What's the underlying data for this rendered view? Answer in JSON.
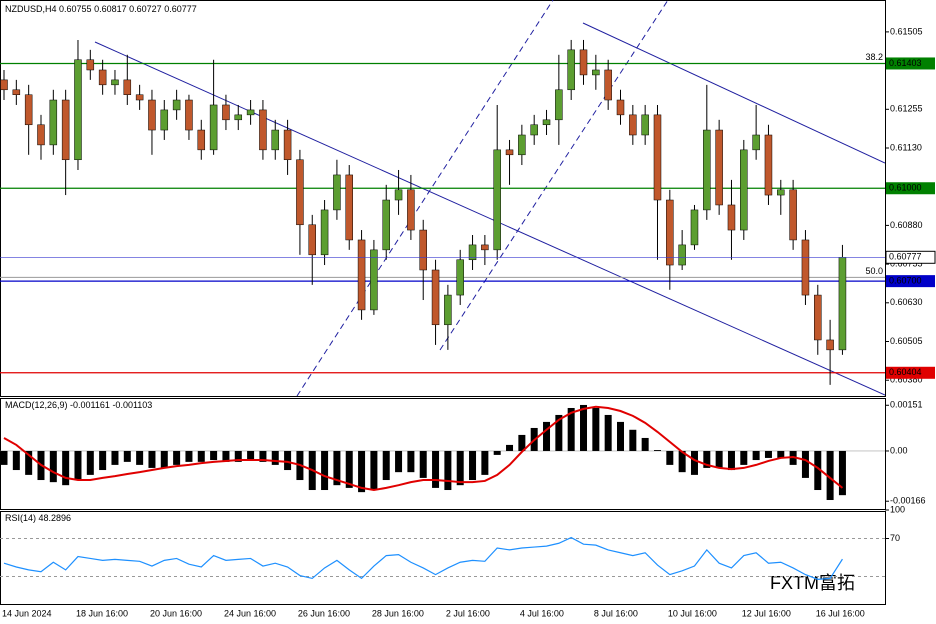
{
  "chart_data": [
    {
      "type": "candlestick",
      "title": "NZDUSD,H4",
      "header_values": [
        0.60755,
        0.60817,
        0.60727,
        0.60777
      ],
      "categories": [
        "14 Jun 2024",
        null,
        null,
        null,
        null,
        null,
        "18 Jun 16:00",
        null,
        null,
        null,
        null,
        null,
        "20 Jun 16:00",
        null,
        null,
        null,
        null,
        null,
        "24 Jun 16:00",
        null,
        null,
        null,
        null,
        null,
        "26 Jun 16:00",
        null,
        null,
        null,
        null,
        null,
        "28 Jun 16:00",
        null,
        null,
        null,
        null,
        null,
        "2 Jul 16:00",
        null,
        null,
        null,
        null,
        null,
        "4 Jul 16:00",
        null,
        null,
        null,
        null,
        null,
        "8 Jul 16:00",
        null,
        null,
        null,
        null,
        null,
        "10 Jul 16:00",
        null,
        null,
        null,
        null,
        null,
        "12 Jul 16:00",
        null,
        null,
        null,
        null,
        null,
        "16 Jul 16:00",
        null,
        null
      ],
      "open": [
        0.6135,
        0.61318,
        0.61302,
        0.61205,
        0.6114,
        0.61285,
        0.61092,
        0.61415,
        0.61382,
        0.61334,
        0.6135,
        0.61302,
        0.61285,
        0.61188,
        0.61253,
        0.61285,
        0.61188,
        0.61124,
        0.61269,
        0.61221,
        0.61237,
        0.61253,
        0.61124,
        0.61188,
        0.61092,
        0.60882,
        0.60785,
        0.6093,
        0.61043,
        0.60833,
        0.60607,
        0.60801,
        0.60962,
        0.60995,
        0.60865,
        0.60736,
        0.60559,
        0.60655,
        0.60769,
        0.60817,
        0.60801,
        0.61124,
        0.61108,
        0.61172,
        0.61205,
        0.61221,
        0.61318,
        0.61447,
        0.61366,
        0.61382,
        0.61285,
        0.61237,
        0.61172,
        0.61237,
        0.60962,
        0.60752,
        0.60817,
        0.6093,
        0.61188,
        0.60946,
        0.60865,
        0.61124,
        0.61172,
        0.60978,
        0.60995,
        0.60833,
        0.60655,
        0.6051,
        0.60478
      ],
      "high": [
        0.61382,
        0.6135,
        0.61334,
        0.61237,
        0.61318,
        0.61318,
        0.61479,
        0.61447,
        0.61415,
        0.61382,
        0.61431,
        0.61334,
        0.61318,
        0.61285,
        0.61318,
        0.61302,
        0.61221,
        0.61415,
        0.61302,
        0.61269,
        0.61285,
        0.61285,
        0.61221,
        0.61221,
        0.61124,
        0.60914,
        0.60962,
        0.61092,
        0.61075,
        0.60865,
        0.60833,
        0.61011,
        0.61059,
        0.61043,
        0.60898,
        0.60769,
        0.60688,
        0.60801,
        0.60849,
        0.60849,
        0.61269,
        0.61156,
        0.61205,
        0.61237,
        0.61253,
        0.61431,
        0.61479,
        0.61479,
        0.61431,
        0.61415,
        0.61318,
        0.61269,
        0.61269,
        0.61269,
        0.60995,
        0.60865,
        0.60946,
        0.61334,
        0.61221,
        0.61027,
        0.61156,
        0.61269,
        0.61205,
        0.61027,
        0.61027,
        0.60865,
        0.60688,
        0.60575,
        0.60817
      ],
      "low": [
        0.61285,
        0.61269,
        0.61108,
        0.61092,
        0.61108,
        0.60978,
        0.61059,
        0.6135,
        0.61302,
        0.61302,
        0.61269,
        0.61253,
        0.61108,
        0.61156,
        0.61221,
        0.61156,
        0.61092,
        0.61108,
        0.61188,
        0.61188,
        0.61205,
        0.61092,
        0.61092,
        0.61043,
        0.60785,
        0.60688,
        0.60752,
        0.60898,
        0.60801,
        0.60575,
        0.60591,
        0.60769,
        0.60914,
        0.60833,
        0.60639,
        0.60494,
        0.60478,
        0.60623,
        0.60736,
        0.60752,
        0.60769,
        0.61011,
        0.61075,
        0.6114,
        0.61172,
        0.6114,
        0.61285,
        0.61334,
        0.61318,
        0.61253,
        0.61205,
        0.6114,
        0.6114,
        0.60769,
        0.60672,
        0.60736,
        0.60801,
        0.60898,
        0.60914,
        0.60769,
        0.60833,
        0.61092,
        0.60946,
        0.60914,
        0.60801,
        0.60623,
        0.60462,
        0.60365,
        0.60462
      ],
      "close": [
        0.61318,
        0.61302,
        0.61205,
        0.6114,
        0.61285,
        0.61092,
        0.61415,
        0.61382,
        0.61334,
        0.6135,
        0.61302,
        0.61285,
        0.61188,
        0.61253,
        0.61285,
        0.61188,
        0.61124,
        0.61269,
        0.61221,
        0.61237,
        0.61253,
        0.61124,
        0.61188,
        0.61092,
        0.60882,
        0.60785,
        0.6093,
        0.61043,
        0.60833,
        0.60607,
        0.60801,
        0.60962,
        0.60995,
        0.60865,
        0.60736,
        0.60559,
        0.60655,
        0.60769,
        0.60817,
        0.60801,
        0.61124,
        0.61108,
        0.61172,
        0.61205,
        0.61221,
        0.61318,
        0.61447,
        0.61366,
        0.61382,
        0.61285,
        0.61237,
        0.61172,
        0.61237,
        0.60962,
        0.60752,
        0.60817,
        0.6093,
        0.61188,
        0.60946,
        0.60865,
        0.61124,
        0.61172,
        0.60978,
        0.60995,
        0.60833,
        0.60655,
        0.6051,
        0.60478,
        0.60777
      ],
      "bull_color": "#5c9e31",
      "bear_color": "#c0582c",
      "ylim": [
        0.60329,
        0.61608
      ],
      "yticks": [
        {
          "value": 0.6038,
          "label": "0.60380"
        },
        0.60505,
        {
          "value": 0.6063,
          "label": "0.60630"
        },
        0.60755,
        {
          "value": 0.6088,
          "label": "0.60880"
        },
        {
          "value": 0.6113,
          "label": "0.61130"
        },
        0.61255,
        0.61505
      ],
      "hlines": [
        {
          "value": 0.61403,
          "color": "#008000"
        },
        {
          "value": 0.61,
          "label": "0.61000",
          "color": "#008000"
        },
        {
          "value": 0.607,
          "label": "0.60700",
          "color": "#0000c8"
        },
        {
          "value": 0.60404,
          "color": "#e00000"
        }
      ],
      "fib_levels": [
        {
          "label": "38.2",
          "price": 0.61403
        },
        {
          "label": "50.0",
          "price": 0.60712
        }
      ],
      "watermark": "FXTM富拓"
    },
    {
      "type": "macd",
      "title": "MACD(12,26,9)",
      "header_values": [
        -0.001161,
        -0.001103
      ],
      "histogram": [
        -0.00046,
        -0.00063,
        -0.00079,
        -0.00096,
        -0.00103,
        -0.00113,
        -0.00096,
        -0.00079,
        -0.00063,
        -0.00046,
        -0.00036,
        -0.00046,
        -0.00056,
        -0.00056,
        -0.00046,
        -0.00036,
        -0.00036,
        -0.0003,
        -0.00036,
        -0.00036,
        -0.0003,
        -0.00036,
        -0.00046,
        -0.00063,
        -0.00096,
        -0.00129,
        -0.00129,
        -0.00113,
        -0.00122,
        -0.00136,
        -0.00129,
        -0.00096,
        -0.0007,
        -0.0007,
        -0.00089,
        -0.00122,
        -0.00129,
        -0.00113,
        -0.00096,
        -0.00079,
        -0.00013,
        0.0002,
        0.00053,
        0.00076,
        0.00096,
        0.00119,
        0.00142,
        0.00152,
        0.00142,
        0.00119,
        0.00096,
        0.0007,
        0.00043,
        3e-05,
        -0.00046,
        -0.0007,
        -0.00079,
        -0.00056,
        -0.00056,
        -0.00063,
        -0.00046,
        -0.0003,
        -0.00023,
        -0.00023,
        -0.00046,
        -0.00089,
        -0.00129,
        -0.00162,
        -0.00146
      ],
      "signal": [
        0.00043,
        0.0002,
        -0.00013,
        -0.00046,
        -0.0007,
        -0.00089,
        -0.00096,
        -0.00096,
        -0.00089,
        -0.00083,
        -0.00076,
        -0.0007,
        -0.00063,
        -0.00056,
        -0.0005,
        -0.00046,
        -0.0004,
        -0.00036,
        -0.00033,
        -0.0003,
        -0.0003,
        -0.0003,
        -0.00033,
        -0.00036,
        -0.00046,
        -0.00063,
        -0.00083,
        -0.00096,
        -0.00109,
        -0.00122,
        -0.00129,
        -0.00122,
        -0.00113,
        -0.00103,
        -0.00096,
        -0.00096,
        -0.00099,
        -0.00103,
        -0.00103,
        -0.00099,
        -0.00079,
        -0.00046,
        -3e-05,
        0.00036,
        0.0007,
        0.00103,
        0.00126,
        0.00139,
        0.00146,
        0.00142,
        0.00132,
        0.00116,
        0.00093,
        0.00063,
        0.0003,
        -3e-05,
        -0.0003,
        -0.00046,
        -0.00056,
        -0.0006,
        -0.00056,
        -0.00046,
        -0.00033,
        -0.00023,
        -0.0002,
        -0.0003,
        -0.00056,
        -0.00089,
        -0.00122
      ],
      "histogram_color": "#000000",
      "signal_color": "#e00000",
      "ylim": [
        -0.00195,
        0.00175
      ],
      "yticks": [
        0.00151,
        {
          "value": 0,
          "label": "0.00"
        },
        -0.00166
      ]
    },
    {
      "type": "line",
      "title": "RSI(14)",
      "header_values": [
        48.2896
      ],
      "values": [
        44,
        40,
        37,
        35,
        45,
        37,
        51,
        49,
        47,
        48,
        47,
        46,
        41,
        47,
        49,
        43,
        40,
        52,
        47,
        48,
        49,
        41,
        44,
        40,
        31,
        28,
        39,
        47,
        37,
        28,
        41,
        52,
        53,
        45,
        39,
        32,
        39,
        45,
        47,
        46,
        60,
        58,
        60,
        61,
        62,
        65,
        71,
        64,
        63,
        58,
        55,
        52,
        55,
        42,
        32,
        36,
        41,
        58,
        44,
        39,
        52,
        55,
        44,
        45,
        39,
        32,
        27,
        28,
        48.3
      ],
      "color": "#1e90ff",
      "levels": [
        30,
        70
      ],
      "ylim": [
        0,
        100
      ],
      "yticks": [
        100,
        70
      ]
    }
  ]
}
